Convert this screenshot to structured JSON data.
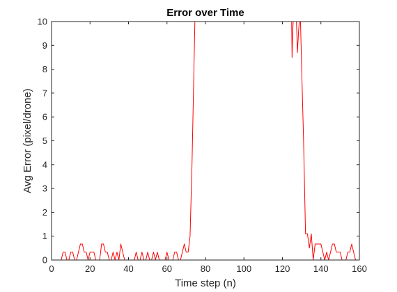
{
  "chart_data": {
    "type": "line",
    "title": "Error over Time",
    "xlabel": "Time step (n)",
    "ylabel": "Avg Error (pixel/drone)",
    "xlim": [
      0,
      160
    ],
    "ylim": [
      0,
      10
    ],
    "xticks": [
      0,
      20,
      40,
      60,
      80,
      100,
      120,
      140,
      160
    ],
    "yticks": [
      0,
      1,
      2,
      3,
      4,
      5,
      6,
      7,
      8,
      9,
      10
    ],
    "grid": false,
    "line_color": "#ff0000",
    "axis_color": "#262626",
    "series": [
      {
        "name": "Avg Error",
        "segments": [
          {
            "x": [
              0,
              1,
              2,
              3,
              4,
              5,
              6,
              7,
              8,
              9,
              10,
              11,
              12,
              13,
              14,
              15,
              16,
              17,
              18,
              19,
              20,
              21,
              22,
              23,
              24,
              25,
              26,
              27,
              28,
              29,
              30,
              31,
              32,
              33,
              34,
              35,
              36,
              37,
              38,
              39,
              40,
              41,
              42,
              43,
              44,
              45,
              46,
              47,
              48,
              49,
              50,
              51,
              52,
              53,
              54,
              55,
              56,
              57,
              58,
              59,
              60,
              61,
              62,
              63,
              64,
              65,
              66,
              67,
              68,
              69,
              70,
              71,
              72,
              73,
              74,
              74.5
            ],
            "y": [
              0,
              0,
              0,
              0,
              0,
              0,
              0.33,
              0.33,
              0,
              0,
              0.33,
              0.33,
              0,
              0,
              0.33,
              0.67,
              0.67,
              0.33,
              0.33,
              0,
              0.33,
              0.33,
              0.33,
              0,
              0,
              0,
              0.67,
              0.67,
              0.33,
              0.33,
              0,
              0,
              0.33,
              0,
              0.33,
              0,
              0.67,
              0.33,
              0,
              0,
              0,
              0,
              0,
              0,
              0.33,
              0,
              0,
              0.33,
              0,
              0,
              0.33,
              0,
              0,
              0.33,
              0,
              0.33,
              0,
              0,
              0,
              0,
              0.33,
              0,
              0,
              0,
              0.33,
              0.33,
              0,
              0,
              0.33,
              0.67,
              0.33,
              0.33,
              1,
              4,
              8,
              10
            ]
          },
          {
            "x": [
              124.8,
              125,
              125.3,
              125.6
            ],
            "y": [
              10,
              8.5,
              9.5,
              10
            ]
          },
          {
            "x": [
              127.3,
              127.8,
              128.4,
              128.8
            ],
            "y": [
              10,
              8.7,
              9.6,
              10
            ]
          },
          {
            "x": [
              129.4,
              130,
              131,
              132,
              133,
              134,
              135,
              136,
              137,
              138,
              139,
              140,
              141,
              142,
              143,
              144,
              145,
              146,
              147,
              148,
              149,
              150,
              151,
              152,
              153,
              154,
              155,
              156,
              157,
              158,
              159
            ],
            "y": [
              10,
              8,
              5,
              1.1,
              1.1,
              0.5,
              1.1,
              0,
              0.67,
              0.67,
              0.67,
              0.67,
              0.33,
              0,
              0.33,
              0,
              0.33,
              0.67,
              0.67,
              0.33,
              0.33,
              0.33,
              0,
              0,
              0,
              0.33,
              0.33,
              0.67,
              0.33,
              0,
              0
            ]
          }
        ]
      }
    ]
  }
}
